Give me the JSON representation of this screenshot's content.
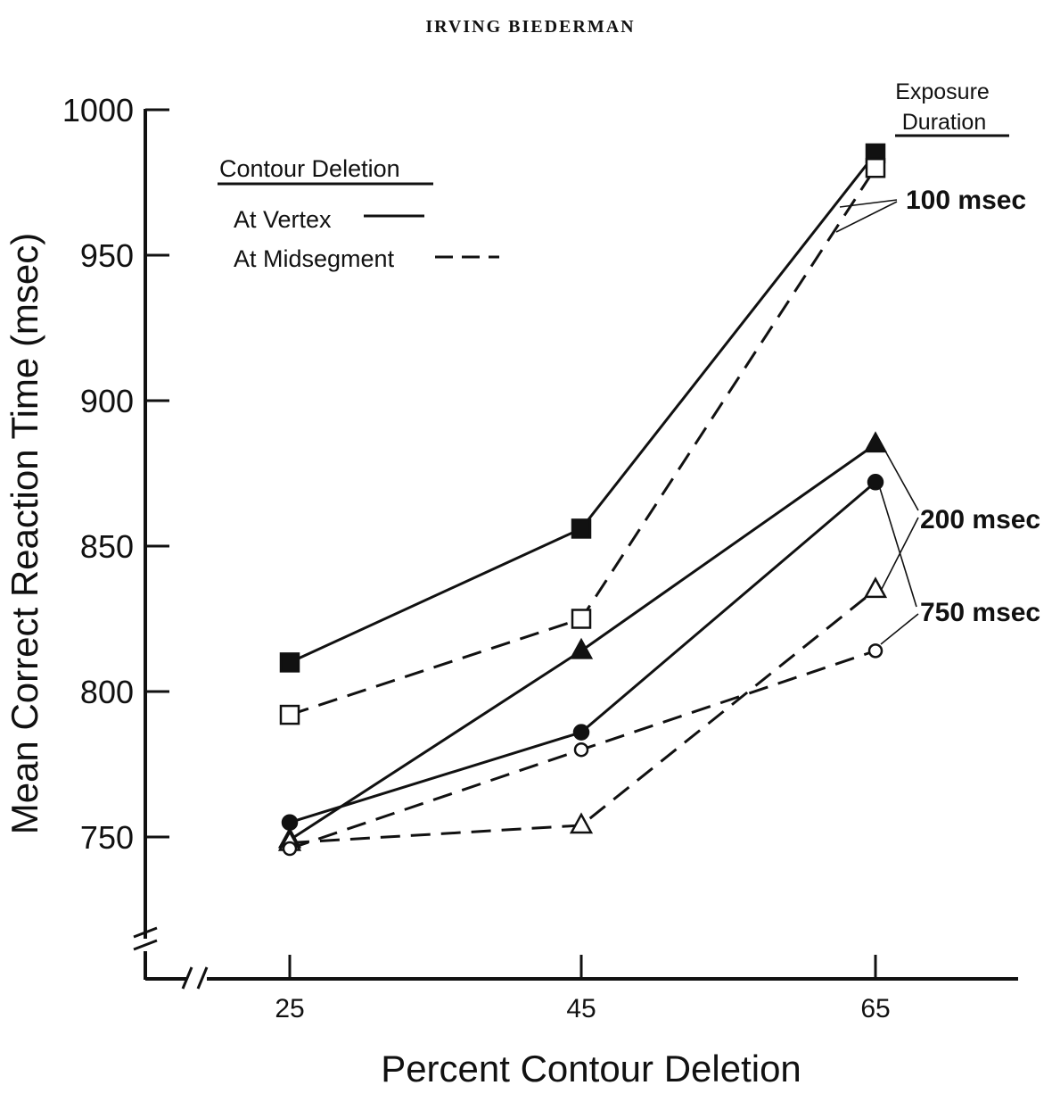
{
  "header": {
    "author": "IRVING BIEDERMAN"
  },
  "chart_data": {
    "type": "line",
    "title": "",
    "xlabel": "Percent Contour Deletion",
    "ylabel": "Mean Correct Reaction Time (msec)",
    "x": [
      25,
      45,
      65
    ],
    "x_tick_labels": [
      "25",
      "45",
      "65"
    ],
    "ylim": [
      700,
      1000
    ],
    "y_ticks": [
      750,
      800,
      850,
      900,
      950,
      1000
    ],
    "y_tick_labels": [
      "750",
      "800",
      "850",
      "900",
      "950",
      "1000"
    ],
    "grid": false,
    "legend": {
      "title": "Contour Deletion",
      "entries": [
        {
          "label": "At Vertex",
          "style": "solid"
        },
        {
          "label": "At Midsegment",
          "style": "dashed"
        }
      ],
      "placement": "top-left"
    },
    "exposure_title": [
      "Exposure",
      "Duration"
    ],
    "series": [
      {
        "values": [
          810,
          856,
          985
        ],
        "style": "solid",
        "marker": "square-filled"
      },
      {
        "values": [
          792,
          825,
          980
        ],
        "style": "dashed",
        "marker": "square-open"
      },
      {
        "values": [
          749,
          814,
          885
        ],
        "style": "solid",
        "marker": "triangle-filled"
      },
      {
        "values": [
          748,
          754,
          835
        ],
        "style": "dashed",
        "marker": "triangle-open"
      },
      {
        "values": [
          755,
          786,
          872
        ],
        "style": "solid",
        "marker": "circle-filled"
      },
      {
        "values": [
          746,
          780,
          814
        ],
        "style": "dashed",
        "marker": "circle-open"
      }
    ],
    "annotations": [
      {
        "text": "100 msec"
      },
      {
        "text": "200 msec"
      },
      {
        "text": "750 msec"
      }
    ],
    "colors": {
      "ink": "#111111",
      "background": "#ffffff"
    }
  }
}
